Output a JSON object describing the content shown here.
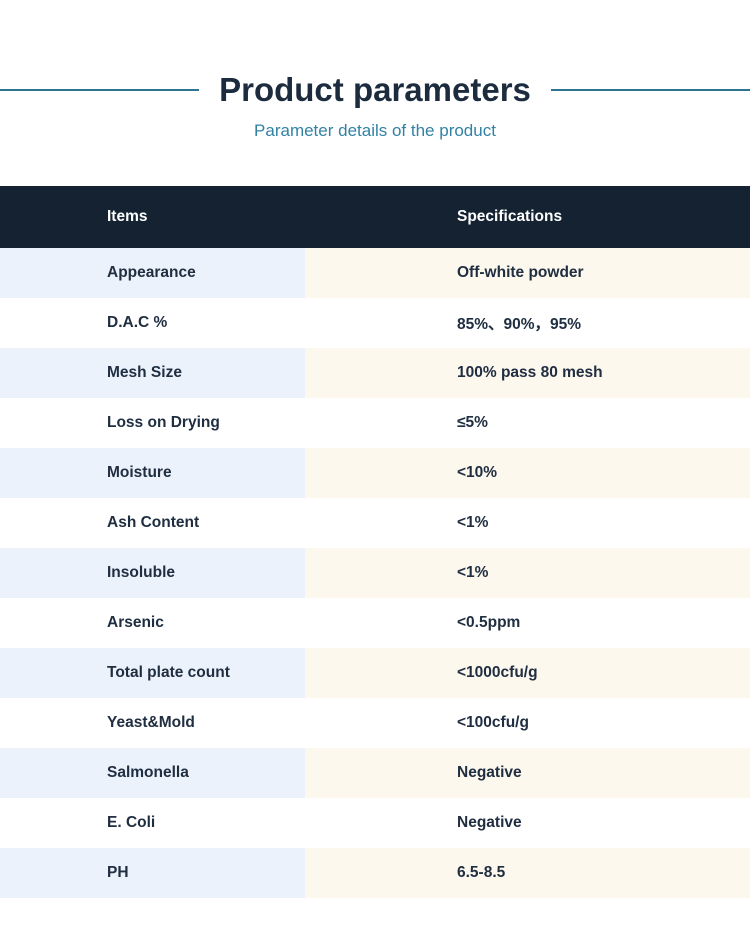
{
  "header": {
    "title": "Product parameters",
    "subtitle": "Parameter details of the product"
  },
  "table": {
    "columns": [
      "Items",
      "Specifications"
    ],
    "rows": [
      {
        "item": "Appearance",
        "spec": "Off-white powder"
      },
      {
        "item": "D.A.C %",
        "spec": "85%、90%，95%"
      },
      {
        "item": "Mesh Size",
        "spec": "100% pass 80 mesh"
      },
      {
        "item": "Loss on Drying",
        "spec": "≤5%"
      },
      {
        "item": "Moisture",
        "spec": "<10%"
      },
      {
        "item": "Ash Content",
        "spec": "<1%"
      },
      {
        "item": "Insoluble",
        "spec": "<1%"
      },
      {
        "item": "Arsenic",
        "spec": "<0.5ppm"
      },
      {
        "item": "Total plate count",
        "spec": "<1000cfu/g"
      },
      {
        "item": "Yeast&Mold",
        "spec": "<100cfu/g"
      },
      {
        "item": "Salmonella",
        "spec": "Negative"
      },
      {
        "item": "E. Coli",
        "spec": "Negative"
      },
      {
        "item": "PH",
        "spec": "6.5-8.5"
      }
    ]
  },
  "colors": {
    "header_bg": "#152232",
    "row_blue": "#ebf2fb",
    "row_cream": "#fdf8ee",
    "accent_line": "#2d7491",
    "title_navy": "#1c2c3e",
    "subtitle_teal": "#3182a4",
    "text_navy": "#202e41"
  }
}
